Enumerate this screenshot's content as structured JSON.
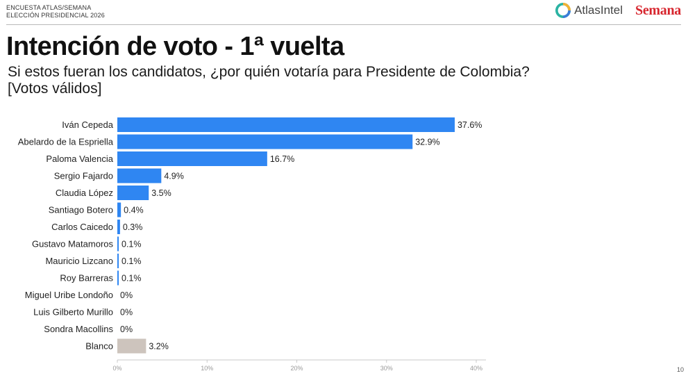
{
  "header": {
    "kicker_line1": "ENCUESTA ATLAS/SEMANA",
    "kicker_line2": "ELECCIÓN PRESIDENCIAL 2026",
    "logo_atlas": "AtlasIntel",
    "logo_semana": "Semana"
  },
  "title": "Intención de voto - 1ª vuelta",
  "subtitle_line1": "Si estos fueran los candidatos, ¿por quién votaría para Presidente de Colombia?",
  "subtitle_line2": "[Votos válidos]",
  "page_number": "10",
  "colors": {
    "bar": "#2f86f2",
    "bar_blank": "#cdc4bd",
    "brand_red": "#d7262e"
  },
  "chart_data": {
    "type": "bar",
    "orientation": "horizontal",
    "categories": [
      "Iván Cepeda",
      "Abelardo de la Espriella",
      "Paloma Valencia",
      "Sergio Fajardo",
      "Claudia López",
      "Santiago Botero",
      "Carlos Caicedo",
      "Gustavo Matamoros",
      "Mauricio Lizcano",
      "Roy Barreras",
      "Miguel Uribe Londoño",
      "Luis Gilberto Murillo",
      "Sondra Macollins",
      "Blanco"
    ],
    "values": [
      37.6,
      32.9,
      16.7,
      4.9,
      3.5,
      0.4,
      0.3,
      0.1,
      0.1,
      0.1,
      0,
      0,
      0,
      3.2
    ],
    "data_labels": [
      "37.6%",
      "32.9%",
      "16.7%",
      "4.9%",
      "3.5%",
      "0.4%",
      "0.3%",
      "0.1%",
      "0.1%",
      "0.1%",
      "0%",
      "0%",
      "0%",
      "3.2%"
    ],
    "highlight_category": "Blanco",
    "xlim": [
      0,
      40
    ],
    "xticks": [
      0,
      10,
      20,
      30,
      40
    ],
    "xtick_labels": [
      "0%",
      "10%",
      "20%",
      "30%",
      "40%"
    ],
    "grid": false,
    "legend": "none"
  }
}
